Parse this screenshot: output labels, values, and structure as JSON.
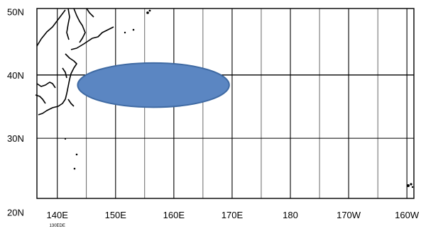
{
  "map": {
    "lat_labels": [
      {
        "text": "50N",
        "lat": 50
      },
      {
        "text": "40N",
        "lat": 40
      },
      {
        "text": "30N",
        "lat": 30
      },
      {
        "text": "20N",
        "lat": 20
      }
    ],
    "lon_labels": [
      {
        "text": "140E",
        "lon": 140
      },
      {
        "text": "150E",
        "lon": 150
      },
      {
        "text": "160E",
        "lon": 160
      },
      {
        "text": "170E",
        "lon": 170
      },
      {
        "text": "180",
        "lon": 180
      },
      {
        "text": "170W",
        "lon": 190
      },
      {
        "text": "160W",
        "lon": 200
      }
    ],
    "small_label": {
      "text": "130EDE",
      "lon": 140
    },
    "extent": {
      "lon_min": 136.5,
      "lon_max": 201.2,
      "lat_min": 20.5,
      "lat_max": 50.5
    },
    "ellipse": {
      "lon_center": 156.5,
      "lat_center": 38.4,
      "lon_halfwidth": 13,
      "lat_halfwidth": 3.5,
      "fill": "#5b86c2",
      "stroke": "#3f6aa3"
    },
    "grid_color": "#000000",
    "coast_color": "#000000"
  }
}
